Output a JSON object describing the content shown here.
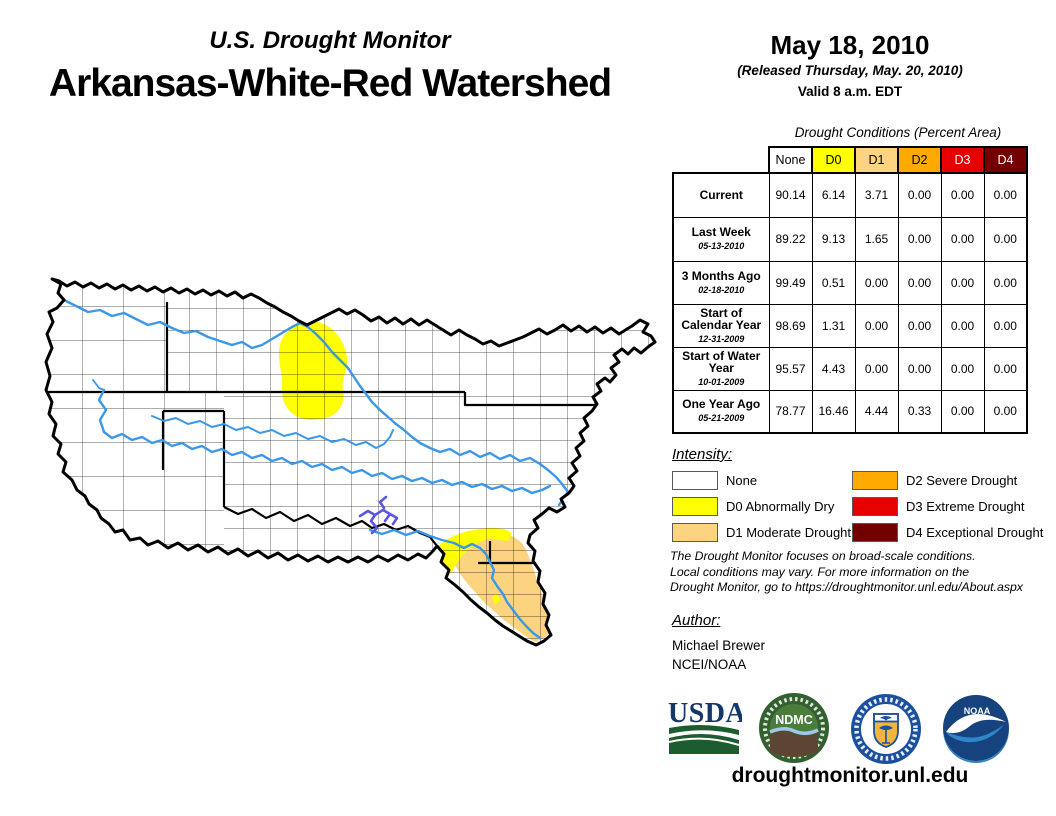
{
  "header": {
    "monitor_title": "U.S. Drought Monitor",
    "region_title": "Arkansas-White-Red Watershed"
  },
  "date_block": {
    "date": "May 18, 2010",
    "released": "(Released Thursday, May. 20, 2010)",
    "valid": "Valid 8 a.m. EDT"
  },
  "table": {
    "title": "Drought Conditions (Percent Area)",
    "columns": [
      {
        "label": "None",
        "color": "#FFFFFF",
        "text_color": "#000000"
      },
      {
        "label": "D0",
        "color": "#FFFF00",
        "text_color": "#000000"
      },
      {
        "label": "D1",
        "color": "#FCD37F",
        "text_color": "#000000"
      },
      {
        "label": "D2",
        "color": "#FFAA00",
        "text_color": "#000000"
      },
      {
        "label": "D3",
        "color": "#E60000",
        "text_color": "#FFFFFF"
      },
      {
        "label": "D4",
        "color": "#730000",
        "text_color": "#FFFFFF"
      }
    ],
    "rows": [
      {
        "label": "Current",
        "date": "",
        "values": [
          "90.14",
          "6.14",
          "3.71",
          "0.00",
          "0.00",
          "0.00"
        ]
      },
      {
        "label": "Last Week",
        "date": "05-13-2010",
        "values": [
          "89.22",
          "9.13",
          "1.65",
          "0.00",
          "0.00",
          "0.00"
        ]
      },
      {
        "label": "3 Months Ago",
        "date": "02-18-2010",
        "values": [
          "99.49",
          "0.51",
          "0.00",
          "0.00",
          "0.00",
          "0.00"
        ]
      },
      {
        "label": "Start of Calendar Year",
        "date": "12-31-2009",
        "values": [
          "98.69",
          "1.31",
          "0.00",
          "0.00",
          "0.00",
          "0.00"
        ]
      },
      {
        "label": "Start of Water Year",
        "date": "10-01-2009",
        "values": [
          "95.57",
          "4.43",
          "0.00",
          "0.00",
          "0.00",
          "0.00"
        ]
      },
      {
        "label": "One Year Ago",
        "date": "05-21-2009",
        "values": [
          "78.77",
          "16.46",
          "4.44",
          "0.33",
          "0.00",
          "0.00"
        ]
      }
    ]
  },
  "legend": {
    "title": "Intensity:",
    "items": [
      {
        "label": "None",
        "color": "#FFFFFF"
      },
      {
        "label": "D0 Abnormally Dry",
        "color": "#FFFF00"
      },
      {
        "label": "D1 Moderate Drought",
        "color": "#FCD37F"
      },
      {
        "label": "D2 Severe Drought",
        "color": "#FFAA00"
      },
      {
        "label": "D3 Extreme Drought",
        "color": "#E60000"
      },
      {
        "label": "D4 Exceptional Drought",
        "color": "#730000"
      }
    ]
  },
  "disclaimer": {
    "line1": "The Drought Monitor focuses on broad-scale conditions.",
    "line2": "Local conditions may vary. For more information on the",
    "line3": "Drought Monitor, go to https://droughtmonitor.unl.edu/About.aspx"
  },
  "author": {
    "title": "Author:",
    "name": "Michael Brewer",
    "org": "NCEI/NOAA"
  },
  "logos": {
    "usda": "USDA",
    "ndmc": "NDMC",
    "noaa": "NOAA"
  },
  "footer": {
    "url": "droughtmonitor.unl.edu"
  },
  "map": {
    "colors": {
      "river": "#3B97E8",
      "lake": "#5B55E0",
      "d0": "#FFFF00",
      "d1": "#FCD37F",
      "outline": "#000000"
    }
  }
}
